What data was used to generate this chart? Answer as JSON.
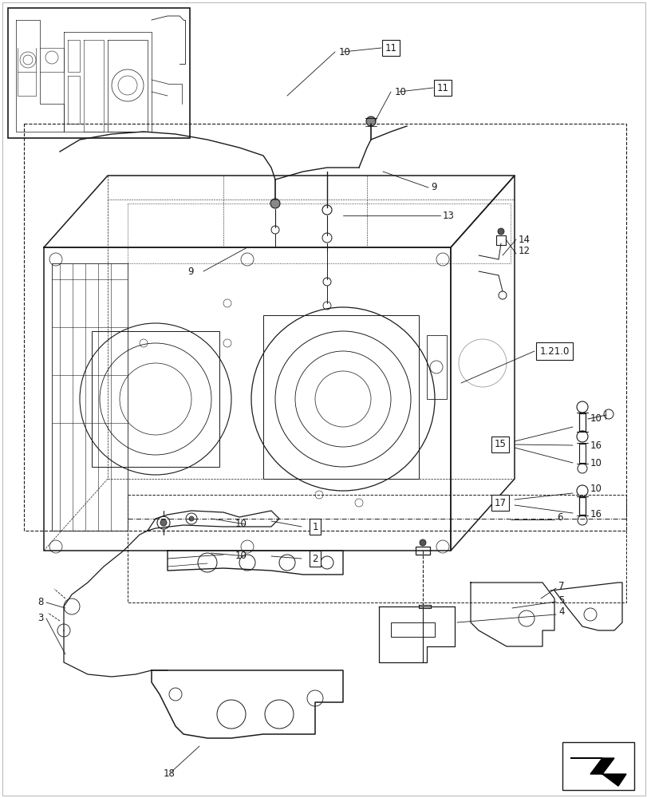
{
  "bg_color": "#ffffff",
  "line_color": "#1a1a1a",
  "figsize": [
    8.12,
    10.0
  ],
  "dpi": 100,
  "label_fontsize": 8.5
}
